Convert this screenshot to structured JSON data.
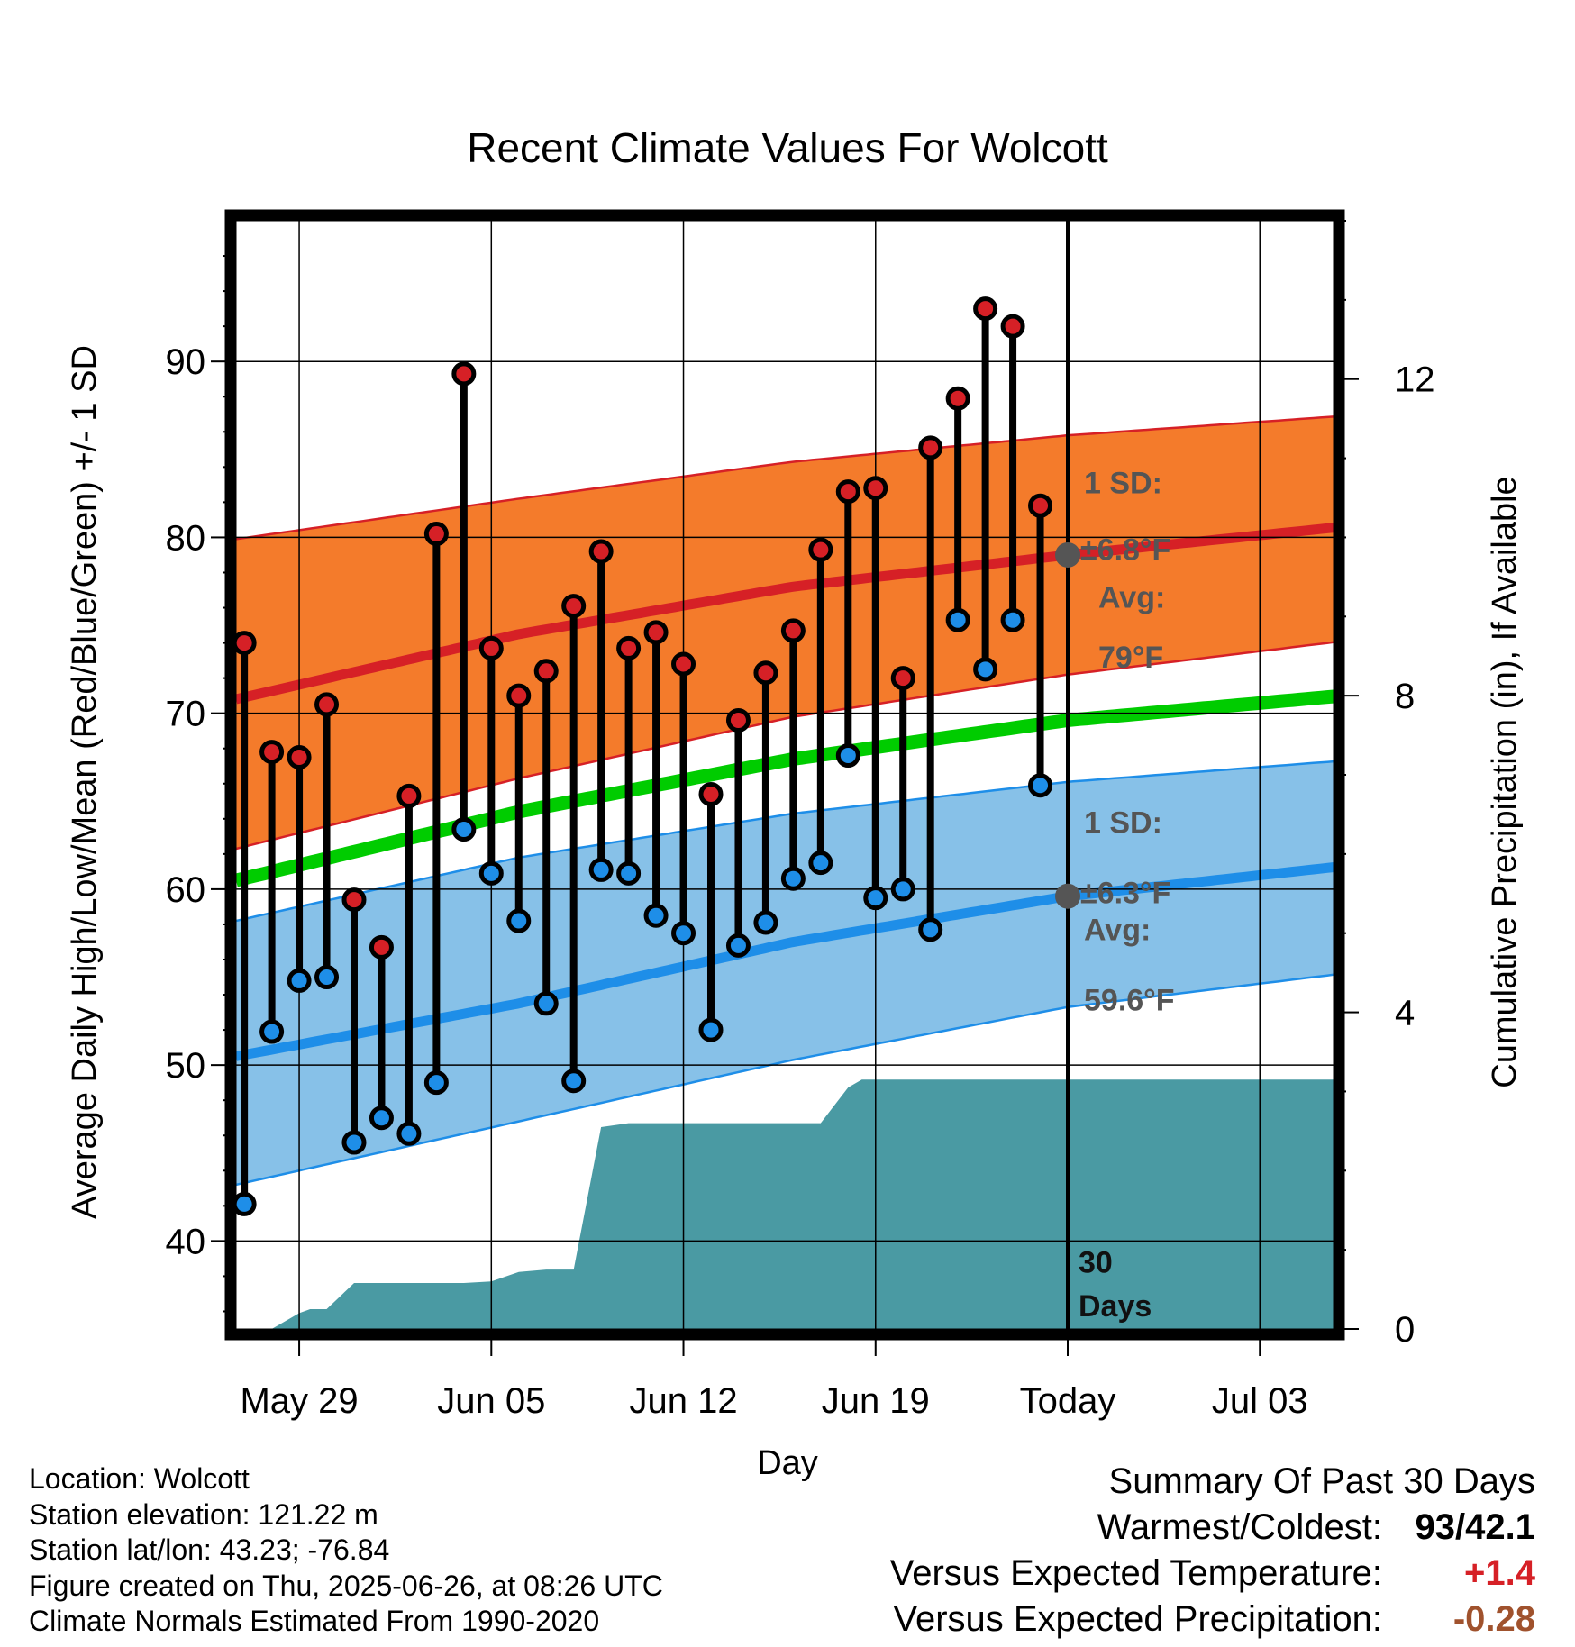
{
  "chart_data": {
    "type": "line",
    "title": "Recent Climate Values For Wolcott",
    "xlabel": "Day",
    "ylabel_left": "Average Daily High/Low/Mean (Red/Blue/Green) +/- 1 SD",
    "ylabel_right": "Cumulative Precipitation (in), If Available",
    "x_tick_labels": [
      "May 29",
      "Jun 05",
      "Jun 12",
      "Jun 19",
      "Today",
      "Jul 03"
    ],
    "ylim_left": [
      35,
      98
    ],
    "yticks_left": [
      40,
      50,
      60,
      70,
      80,
      90
    ],
    "ylim_right": [
      0,
      14
    ],
    "yticks_right": [
      0,
      4,
      8,
      12
    ],
    "days_range": [
      -30.3,
      10
    ],
    "grid": true,
    "daily": {
      "days": [
        -30,
        -29,
        -28,
        -27,
        -26,
        -25,
        -24,
        -23,
        -22,
        -21,
        -20,
        -19,
        -18,
        -17,
        -16,
        -15,
        -14,
        -13,
        -12,
        -11,
        -10,
        -9,
        -8,
        -7,
        -6,
        -5,
        -4,
        -3,
        -2,
        -1
      ],
      "high": [
        74,
        67.8,
        67.5,
        70.5,
        59.4,
        56.7,
        65.3,
        80.2,
        89.3,
        73.7,
        71,
        72.4,
        76.1,
        79.2,
        73.7,
        74.6,
        72.8,
        65.4,
        69.6,
        72.3,
        74.7,
        79.3,
        82.6,
        82.8,
        72,
        85.1,
        87.9,
        93,
        92,
        81.8
      ],
      "low": [
        42.1,
        51.9,
        54.8,
        55,
        45.6,
        47,
        46.1,
        49,
        63.4,
        60.9,
        58.2,
        53.5,
        49.1,
        61.1,
        60.9,
        58.5,
        57.5,
        52,
        56.8,
        58.1,
        60.6,
        61.5,
        67.6,
        59.5,
        60,
        57.7,
        75.3,
        72.5,
        75.3,
        65.9
      ]
    },
    "normals": {
      "days": [
        -30.3,
        -20,
        -10,
        0,
        10
      ],
      "avg_high": [
        70.8,
        74.5,
        77.2,
        79,
        80.6
      ],
      "avg_high_plus_1sd": [
        79.9,
        82.2,
        84.3,
        85.8,
        86.9
      ],
      "avg_high_minus_1sd": [
        62.3,
        66.3,
        69.8,
        72.2,
        74.1
      ],
      "avg_mean": [
        60.5,
        64.4,
        67.4,
        69.6,
        71
      ],
      "avg_low": [
        50.5,
        53.5,
        57,
        59.6,
        61.3
      ],
      "avg_low_plus_1sd": [
        58.2,
        61.8,
        64.3,
        66.1,
        67.3
      ],
      "avg_low_minus_1sd": [
        43.2,
        46.8,
        50.3,
        53.3,
        55.2
      ]
    },
    "cumulative_precip": {
      "days": [
        -30.3,
        -29,
        -28,
        -27.6,
        -27,
        -26,
        -25,
        -24,
        -23,
        -22,
        -21,
        -20,
        -19,
        -18,
        -17,
        -16,
        -15,
        -14,
        -13,
        -12,
        -11,
        -10,
        -9,
        -8,
        -7.5,
        -7,
        -6,
        -5,
        10
      ],
      "inches": [
        0,
        0,
        0.2,
        0.25,
        0.25,
        0.58,
        0.58,
        0.58,
        0.58,
        0.58,
        0.6,
        0.72,
        0.75,
        0.75,
        2.55,
        2.6,
        2.6,
        2.6,
        2.6,
        2.6,
        2.6,
        2.6,
        2.6,
        3.05,
        3.15,
        3.15,
        3.15,
        3.15,
        3.15
      ]
    },
    "annotations": {
      "high_sd_label": "1 SD:",
      "high_sd_value": "±6.8°F",
      "high_avg_label": "Avg:",
      "high_avg_value": "79°F",
      "low_sd_label": "1 SD:",
      "low_sd_value": "±6.3°F",
      "low_avg_label": "Avg:",
      "low_avg_value": "59.6°F",
      "period_num": "30",
      "period_unit": "Days",
      "today_high_avg": 79,
      "today_low_avg": 59.6
    }
  },
  "footer": {
    "location": "Location: Wolcott",
    "elevation": "Station elevation: 121.22 m",
    "latlon": "Station lat/lon: 43.23; -76.84",
    "created": "Figure created on Thu, 2025-06-26, at 08:26 UTC",
    "normals": "Climate Normals Estimated From 1990-2020"
  },
  "summary": {
    "title": "Summary Of Past 30 Days",
    "warmest_coldest_label": "Warmest/Coldest:",
    "warmest_coldest_value": "93/42.1",
    "temp_label": "Versus Expected Temperature:",
    "temp_value": "+1.4",
    "precip_label": "Versus Expected Precipitation:",
    "precip_value": "-0.28"
  },
  "colors": {
    "high_band": "#f47b2b",
    "high_avg": "#d62026",
    "mean": "#00cc00",
    "low_band": "#87c1e8",
    "low_avg": "#1e8ee8",
    "precip": "#4a9aa3",
    "high_point": "#d62026",
    "low_point": "#1e8ee8",
    "annotation": "#555555",
    "temp_value": "#d62026",
    "precip_value": "#a0522d"
  }
}
